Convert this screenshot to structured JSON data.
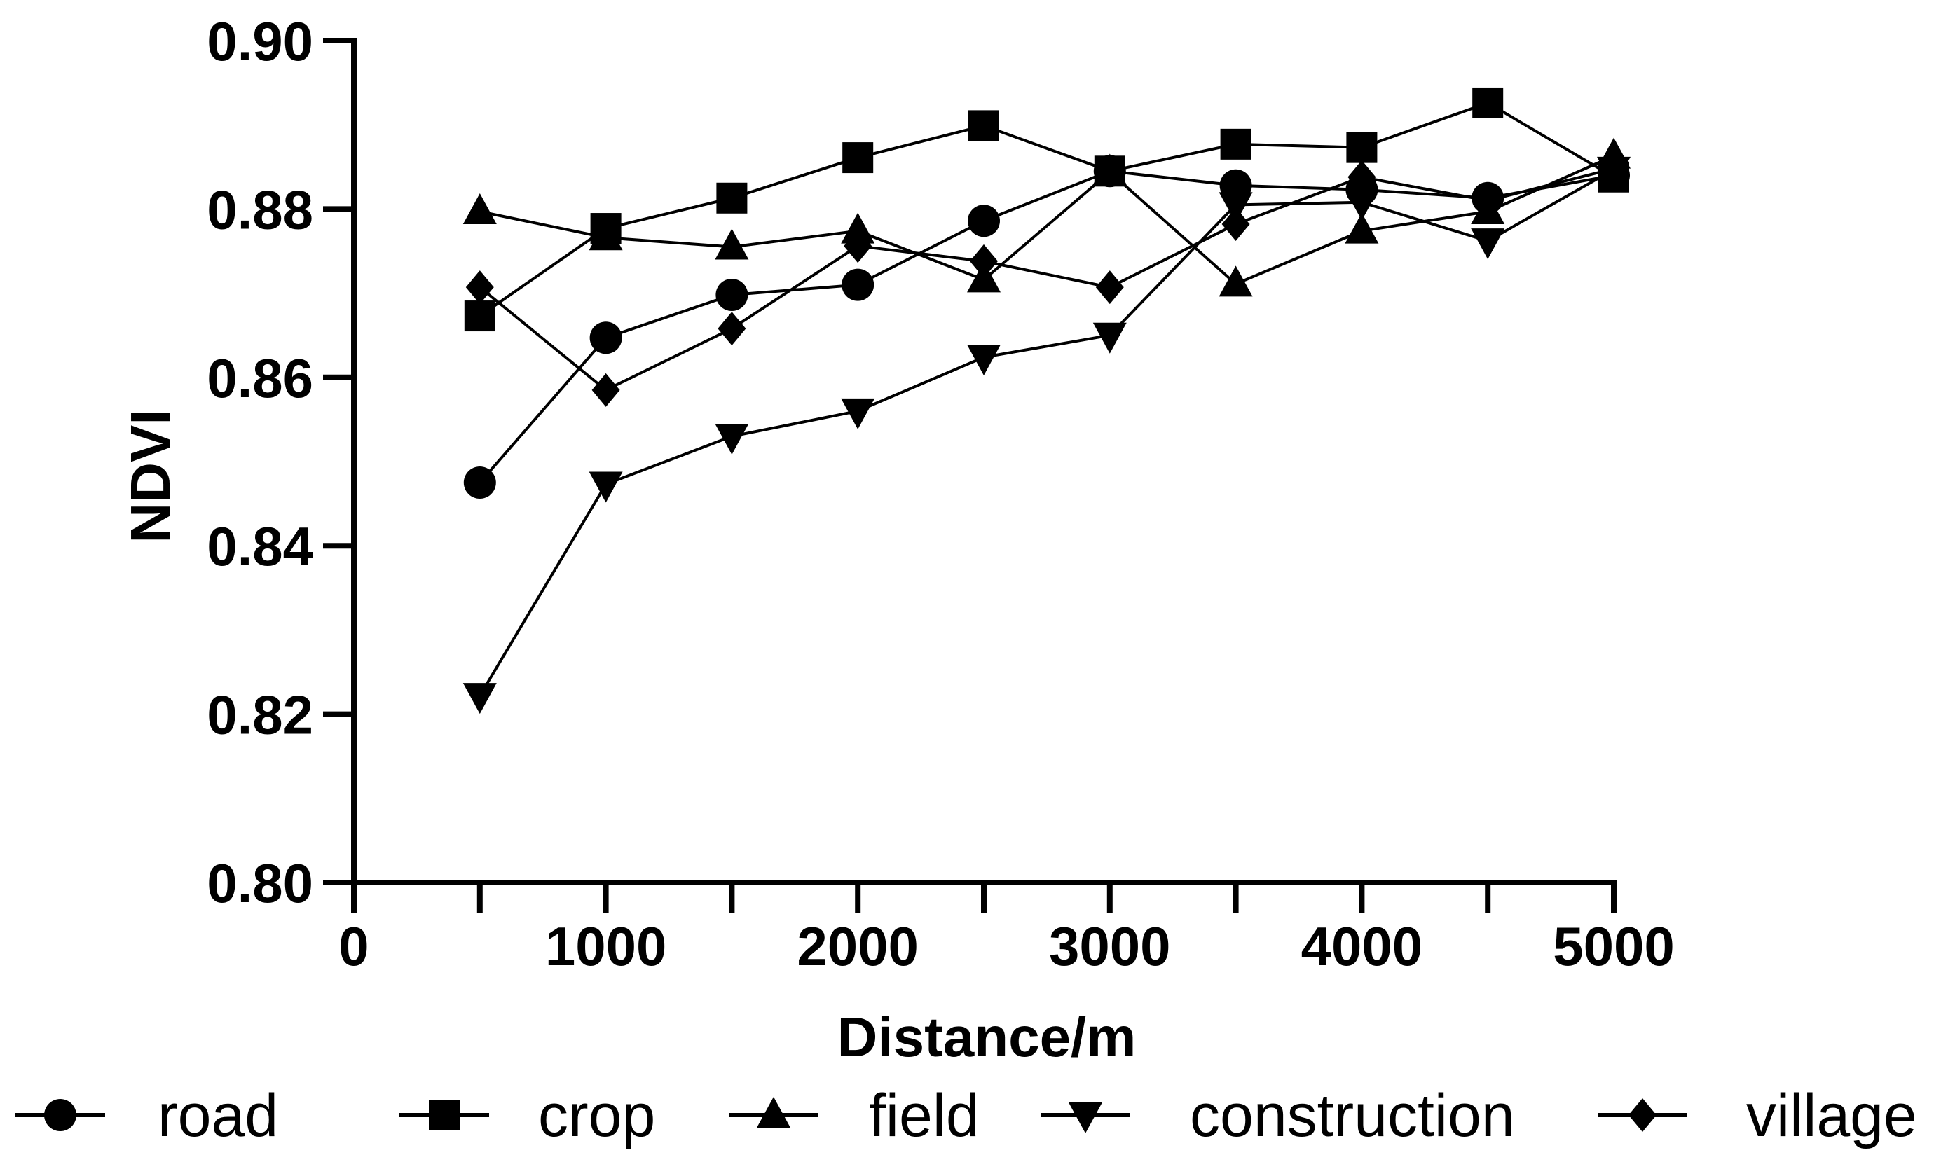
{
  "chart_data": {
    "type": "line",
    "title": "",
    "xlabel": "Distance/m",
    "ylabel": "NDVI",
    "xlim": [
      0,
      5000
    ],
    "ylim": [
      0.8,
      0.9
    ],
    "xticks": [
      0,
      1000,
      2000,
      3000,
      4000,
      5000
    ],
    "xtick_labels": [
      "0",
      "1000",
      "2000",
      "3000",
      "4000",
      "5000"
    ],
    "yticks": [
      0.8,
      0.82,
      0.84,
      0.86,
      0.88,
      0.9
    ],
    "ytick_labels": [
      "0.80",
      "0.82",
      "0.84",
      "0.86",
      "0.88",
      "0.90"
    ],
    "x": [
      500,
      1000,
      1500,
      2000,
      2500,
      3000,
      3500,
      4000,
      4500,
      5000
    ],
    "legend_position": "bottom",
    "series": [
      {
        "name": "road",
        "marker": "circle",
        "values": [
          0.8475,
          0.8647,
          0.8698,
          0.871,
          0.8786,
          0.8845,
          0.8828,
          0.8823,
          0.8813,
          0.884
        ]
      },
      {
        "name": "crop",
        "marker": "square",
        "values": [
          0.8673,
          0.8777,
          0.8813,
          0.8861,
          0.8899,
          0.8845,
          0.8877,
          0.8873,
          0.8926,
          0.8838
        ]
      },
      {
        "name": "field",
        "marker": "triangle-up",
        "values": [
          0.8797,
          0.8766,
          0.8755,
          0.8774,
          0.8716,
          0.8844,
          0.8711,
          0.8774,
          0.8797,
          0.8863
        ]
      },
      {
        "name": "construction",
        "marker": "triangle-down",
        "values": [
          0.8222,
          0.8473,
          0.853,
          0.856,
          0.8624,
          0.865,
          0.8805,
          0.8808,
          0.8762,
          0.8847
        ]
      },
      {
        "name": "village",
        "marker": "diamond",
        "values": [
          0.8707,
          0.8585,
          0.8658,
          0.8756,
          0.8738,
          0.8707,
          0.8782,
          0.8838,
          0.881,
          0.8848
        ]
      }
    ]
  }
}
